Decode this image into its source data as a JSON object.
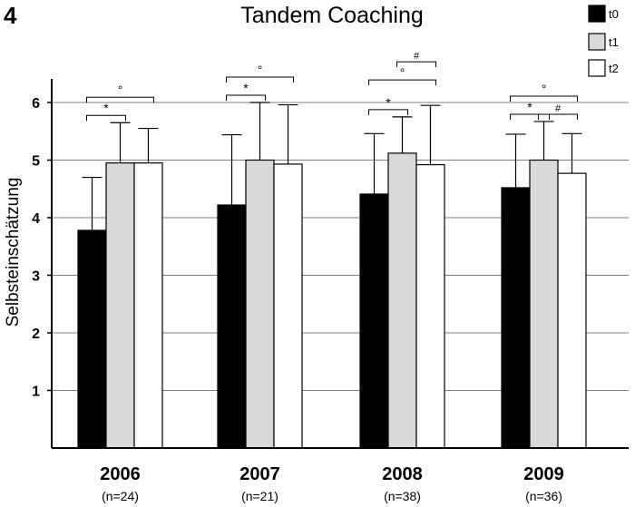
{
  "chart_data": {
    "type": "bar",
    "panel_label": "4",
    "title": "Tandem Coaching",
    "ylabel": "Selbsteinschätzung",
    "xlabel": "",
    "ylim": [
      0,
      6.4
    ],
    "yticks": [
      "1",
      "2",
      "3",
      "4",
      "5",
      "6"
    ],
    "grid": true,
    "legend_position": "top-right",
    "categories": [
      "2006",
      "2007",
      "2008",
      "2009"
    ],
    "category_notes": [
      "(n=24)",
      "(n=21)",
      "(n=38)",
      "(n=36)"
    ],
    "series": [
      {
        "name": "t0",
        "color": "#000000",
        "values": [
          3.78,
          4.22,
          4.41,
          4.52
        ],
        "errors": [
          0.92,
          1.22,
          1.05,
          0.93
        ]
      },
      {
        "name": "t1",
        "color": "#d9d9d9",
        "values": [
          4.95,
          5.0,
          5.12,
          5.0
        ],
        "errors": [
          0.7,
          1.0,
          0.63,
          0.67
        ]
      },
      {
        "name": "t2",
        "color": "#ffffff",
        "values": [
          4.95,
          4.93,
          4.92,
          4.77
        ],
        "errors": [
          0.6,
          1.03,
          1.03,
          0.69
        ]
      }
    ],
    "significance": [
      {
        "category": 0,
        "from": 0,
        "to": 1,
        "symbol": "*",
        "level": 1
      },
      {
        "category": 0,
        "from": 0,
        "to": 2,
        "symbol": "°",
        "level": 2
      },
      {
        "category": 1,
        "from": 0,
        "to": 1,
        "symbol": "*",
        "level": 1
      },
      {
        "category": 1,
        "from": 0,
        "to": 2,
        "symbol": "°",
        "level": 2
      },
      {
        "category": 2,
        "from": 0,
        "to": 1,
        "symbol": "*",
        "level": 1
      },
      {
        "category": 2,
        "from": 0,
        "to": 2,
        "symbol": "°",
        "level": 2
      },
      {
        "category": 2,
        "from": 1,
        "to": 2,
        "symbol": "#",
        "level": 3
      },
      {
        "category": 3,
        "from": 0,
        "to": 1,
        "symbol": "*",
        "level": 1
      },
      {
        "category": 3,
        "from": 1,
        "to": 2,
        "symbol": "#",
        "level": 1
      },
      {
        "category": 3,
        "from": 0,
        "to": 2,
        "symbol": "°",
        "level": 2
      }
    ]
  }
}
